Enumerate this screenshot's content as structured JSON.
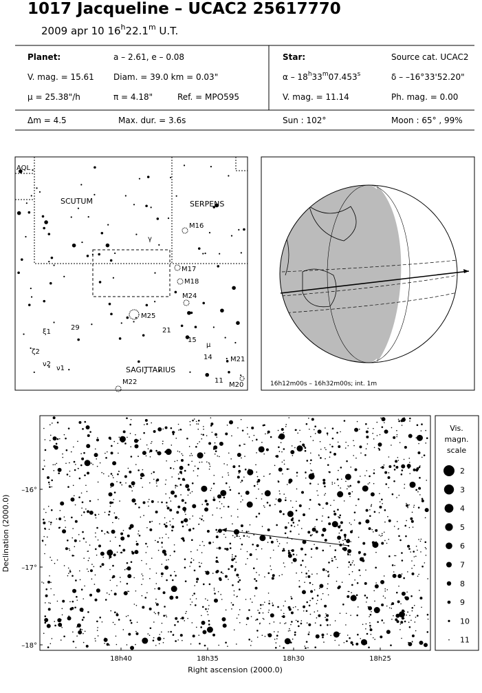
{
  "header": {
    "title": "1017 Jacqueline  –  UCAC2 25617770",
    "date": [
      "2009 apr 10  16",
      "h",
      "22.1",
      "m",
      " U.T."
    ]
  },
  "info": {
    "planet_heading": "Planet:",
    "orbit": "a – 2.61, e – 0.08",
    "vmag": "V. mag. = 15.61",
    "diam": "Diam. = 39.0 km = 0.03\"",
    "motion": "μ = 25.38\"/h",
    "parallax": "π =  4.18\"",
    "ref": "Ref. = MPO595",
    "star_heading": "Star:",
    "source": "Source cat.  UCAC2",
    "alpha": [
      "α – 18",
      "h",
      "33",
      "m",
      "07.453",
      "s"
    ],
    "delta": "δ – –16°33'52.20\"",
    "star_vmag": "V. mag. = 11.14",
    "phmag": "Ph. mag. =  0.00",
    "dmag": "Δm = 4.5",
    "maxdur": "Max. dur. = 3.6s",
    "sun": "Sun : 102°",
    "moon": "Moon :  65° , 99%"
  },
  "finder": {
    "labels": [
      "AQL",
      "SCUTUM",
      "SERPENS",
      "M16",
      "γ",
      "M17",
      "M18",
      "M24",
      "M25",
      "29",
      "21",
      "15",
      "μ",
      "14",
      "M21",
      "11",
      "M20",
      "SAGITTARIUS",
      "M22",
      "ξ1",
      "ζ2",
      "ν2",
      "ν1"
    ]
  },
  "globe": {
    "caption": "16h12m00s – 16h32m00s; int.  1m"
  },
  "star_chart": {
    "y_label": "Declination (2000.0)",
    "x_label": "Right ascension (2000.0)",
    "yticks": [
      "–16°",
      "–17°",
      "–18°"
    ],
    "xticks": [
      "18h40",
      "18h35",
      "18h30",
      "18h25"
    ],
    "legend_title": [
      "Vis.",
      "magn.",
      "scale"
    ],
    "legend_values": [
      2,
      3,
      4,
      5,
      6,
      7,
      8,
      9,
      10,
      11
    ]
  }
}
